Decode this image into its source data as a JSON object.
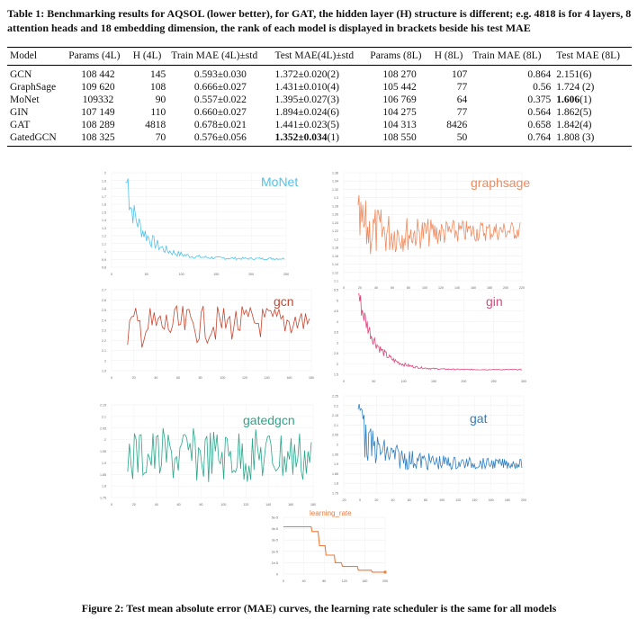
{
  "caption": {
    "label": "Table 1:",
    "text": "Benchmarking results for AQSOL (lower better), for GAT, the hidden layer (H) structure is different; e.g. 4818 is for 4 layers, 8 attention heads and 18 embedding dimension, the rank of each model is displayed in brackets beside his test MAE"
  },
  "table": {
    "headers": [
      "Model",
      "Params (4L)",
      "H (4L)",
      "Train MAE (4L)±std",
      "Test MAE(4L)±std",
      "Params (8L)",
      "H (8L)",
      "Train MAE (8L)",
      "Test MAE (8L)"
    ],
    "rows": [
      {
        "model": "GCN",
        "p4": "108 442",
        "h4": "145",
        "tr4": "0.593±0.030",
        "te4": "1.372±0.020(2)",
        "p8": "108 270",
        "h8": "107",
        "tr8": "0.864",
        "te8": "2.151(6)"
      },
      {
        "model": "GraphSage",
        "p4": "109 620",
        "h4": "108",
        "tr4": "0.666±0.027",
        "te4": "1.431±0.010(4)",
        "p8": "105 442",
        "h8": "77",
        "tr8": "0.56",
        "te8": "1.724 (2)"
      },
      {
        "model": "MoNet",
        "p4": "109332",
        "h4": "90",
        "tr4": "0.557±0.022",
        "te4": "1.395±0.027(3)",
        "p8": "106 769",
        "h8": "64",
        "tr8": "0.375",
        "te8_bold": "1.606",
        "te8_rest": "(1)"
      },
      {
        "model": "GIN",
        "p4": "107 149",
        "h4": "110",
        "tr4": "0.660±0.027",
        "te4": "1.894±0.024(6)",
        "p8": "104 275",
        "h8": "77",
        "tr8": "0.564",
        "te8": "1.862(5)"
      },
      {
        "model": "GAT",
        "p4": "108 289",
        "h4": "4818",
        "tr4": "0.678±0.021",
        "te4": "1.441±0.023(5)",
        "p8": "104 313",
        "h8": "8426",
        "tr8": "0.658",
        "te8": "1.842(4)"
      },
      {
        "model": "GatedGCN",
        "p4": "108 325",
        "h4": "70",
        "tr4": "0.576±0.056",
        "te4_bold": "1.352±0.034",
        "te4_rest": "(1)",
        "p8": "108 550",
        "h8": "50",
        "tr8": "0.764",
        "te8": "1.808 (3)"
      }
    ]
  },
  "figure_caption": "Figure 2: Test mean absolute error (MAE) curves, the learning rate scheduler is the same for all models",
  "chart_data": [
    {
      "type": "line",
      "title": "MoNet",
      "color": "#4fc3e8",
      "x_ticks": [
        "0",
        "50",
        "100",
        "150",
        "200",
        "250"
      ],
      "y_ticks": [
        "2",
        "1.9",
        "1.8",
        "1.7",
        "1.6",
        "1.5",
        "1.4",
        "1.3",
        "1.2",
        "1.1",
        "1",
        "0.9",
        "0.8"
      ],
      "xlim": [
        0,
        250
      ],
      "ylim": [
        0.8,
        2.0
      ]
    },
    {
      "type": "line",
      "title": "graphsage",
      "color": "#f08a5d",
      "x_ticks": [
        "0",
        "20",
        "40",
        "60",
        "80",
        "100",
        "120",
        "140",
        "160",
        "180",
        "200",
        "220"
      ],
      "y_ticks": [
        "1.36",
        "1.34",
        "1.32",
        "1.3",
        "1.28",
        "1.26",
        "1.24",
        "1.22",
        "1.2",
        "1.18",
        "1.16",
        "1.14",
        "1.12",
        "1.1"
      ],
      "xlim": [
        0,
        220
      ],
      "ylim": [
        1.1,
        1.36
      ]
    },
    {
      "type": "line",
      "title": "gcn",
      "color": "#c7462f",
      "x_ticks": [
        "0",
        "20",
        "40",
        "60",
        "80",
        "100",
        "120",
        "140",
        "160",
        "180"
      ],
      "y_ticks": [
        "2.7",
        "2.6",
        "2.5",
        "2.4",
        "2.3",
        "2.2",
        "2.1",
        "2",
        "1.9"
      ],
      "xlim": [
        0,
        180
      ],
      "ylim": [
        1.9,
        2.7
      ]
    },
    {
      "type": "line",
      "title": "gin",
      "color": "#e0457b",
      "x_ticks": [
        "0",
        "50",
        "100",
        "150",
        "200",
        "250",
        "300"
      ],
      "y_ticks": [
        "5.5",
        "5",
        "4.5",
        "4",
        "3.5",
        "3",
        "2.5",
        "2",
        "1.5"
      ],
      "xlim": [
        0,
        300
      ],
      "ylim": [
        1.5,
        5.5
      ]
    },
    {
      "type": "line",
      "title": "gatedgcn",
      "color": "#2aa689",
      "x_ticks": [
        "0",
        "20",
        "40",
        "60",
        "80",
        "100",
        "120",
        "140",
        "160",
        "180"
      ],
      "y_ticks": [
        "2.15",
        "2.1",
        "2.05",
        "2",
        "1.95",
        "1.9",
        "1.85",
        "1.8",
        "1.75"
      ],
      "xlim": [
        0,
        180
      ],
      "ylim": [
        1.75,
        2.15
      ]
    },
    {
      "type": "line",
      "title": "gat",
      "color": "#2f7fbf",
      "x_ticks": [
        "-20",
        "0",
        "20",
        "40",
        "60",
        "80",
        "100",
        "120",
        "140",
        "160",
        "180",
        "200"
      ],
      "y_ticks": [
        "2.25",
        "2.2",
        "2.15",
        "2.1",
        "2.05",
        "2",
        "1.95",
        "1.9",
        "1.85",
        "1.8",
        "1.75"
      ],
      "xlim": [
        -20,
        200
      ],
      "ylim": [
        1.75,
        2.25
      ]
    },
    {
      "type": "line",
      "title": "learning_rate",
      "color": "#f07a3a",
      "x_ticks": [
        "0",
        "40",
        "80",
        "120",
        "160",
        "200"
      ],
      "y_ticks": [
        "5e-5",
        "4e-5",
        "3e-5",
        "2e-5",
        "1e-5",
        "0"
      ],
      "xlim": [
        0,
        220
      ],
      "ylim": [
        0,
        6e-05
      ],
      "x": [
        0,
        60,
        62,
        75,
        78,
        90,
        92,
        110,
        112,
        125,
        128,
        160,
        162,
        190,
        192,
        220
      ],
      "y": [
        5e-05,
        5e-05,
        4.5e-05,
        4.5e-05,
        3e-05,
        3e-05,
        2e-05,
        2e-05,
        1.2e-05,
        1.2e-05,
        8e-06,
        8e-06,
        4e-06,
        4e-06,
        2e-06,
        2e-06
      ]
    }
  ]
}
